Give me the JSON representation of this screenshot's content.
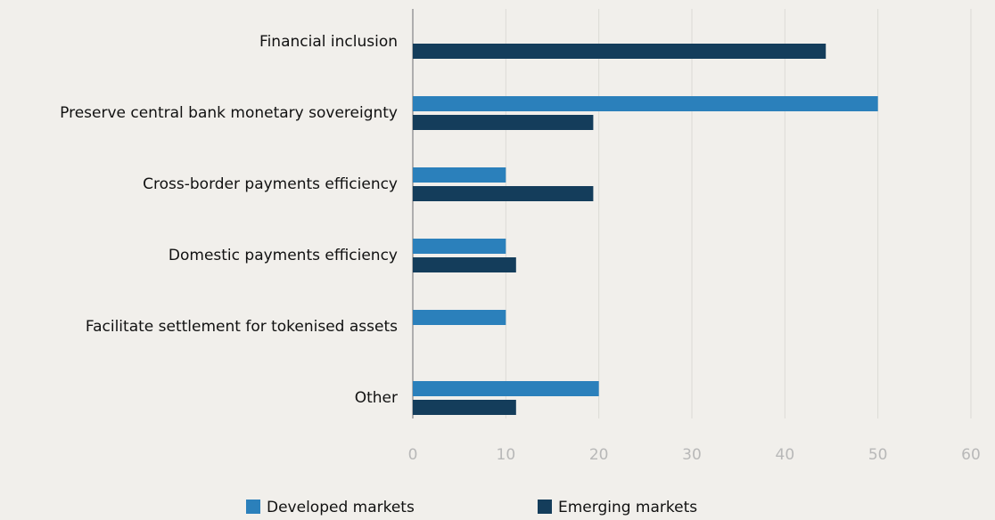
{
  "chart_data": {
    "type": "bar",
    "orientation": "horizontal",
    "categories": [
      "Financial inclusion",
      "Preserve central bank monetary sovereignty",
      "Cross-border payments efficiency",
      "Domestic payments efficiency",
      "Facilitate settlement for tokenised assets",
      "Other"
    ],
    "series": [
      {
        "name": "Developed markets",
        "color": "#2b80bb",
        "values": [
          0,
          50,
          10,
          10,
          10,
          20
        ]
      },
      {
        "name": "Emerging markets",
        "color": "#143d5b",
        "values": [
          44.4,
          19.4,
          19.4,
          11.1,
          0,
          11.1
        ]
      }
    ],
    "xlim": [
      0,
      60
    ],
    "xticks": [
      0,
      10,
      20,
      30,
      40,
      50,
      60
    ],
    "grid": true,
    "legend": "bottom"
  }
}
